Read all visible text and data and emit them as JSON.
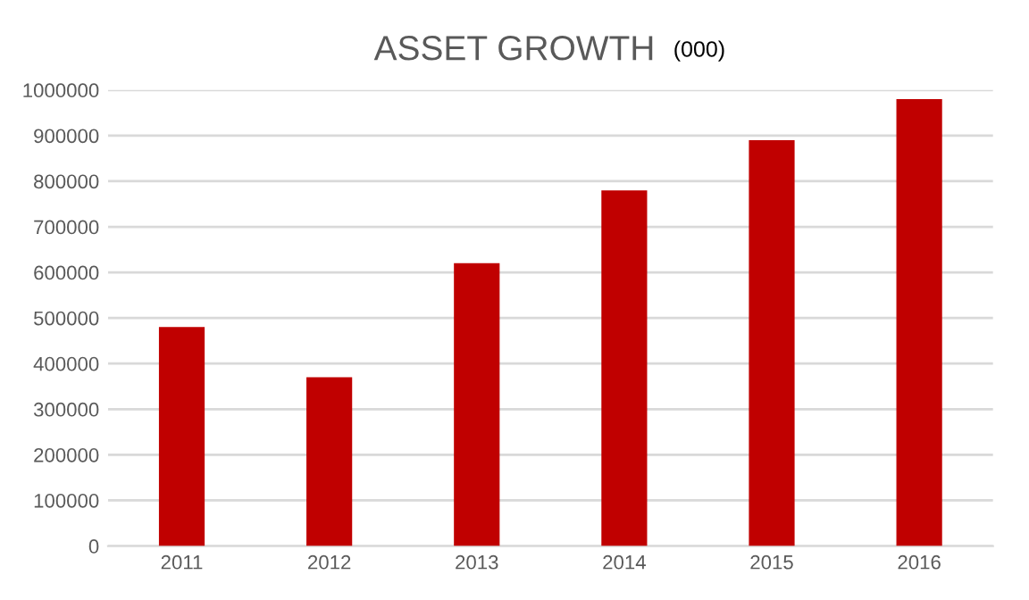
{
  "chart_data": {
    "type": "bar",
    "title": "ASSET GROWTH",
    "subtitle": "(000)",
    "categories": [
      "2011",
      "2012",
      "2013",
      "2014",
      "2015",
      "2016"
    ],
    "values": [
      480000,
      370000,
      620000,
      780000,
      890000,
      980000
    ],
    "color": "#c00000",
    "ylim": [
      0,
      1000000
    ],
    "yticks": [
      0,
      100000,
      200000,
      300000,
      400000,
      500000,
      600000,
      700000,
      800000,
      900000,
      1000000
    ],
    "grid": "y",
    "legend": false
  }
}
